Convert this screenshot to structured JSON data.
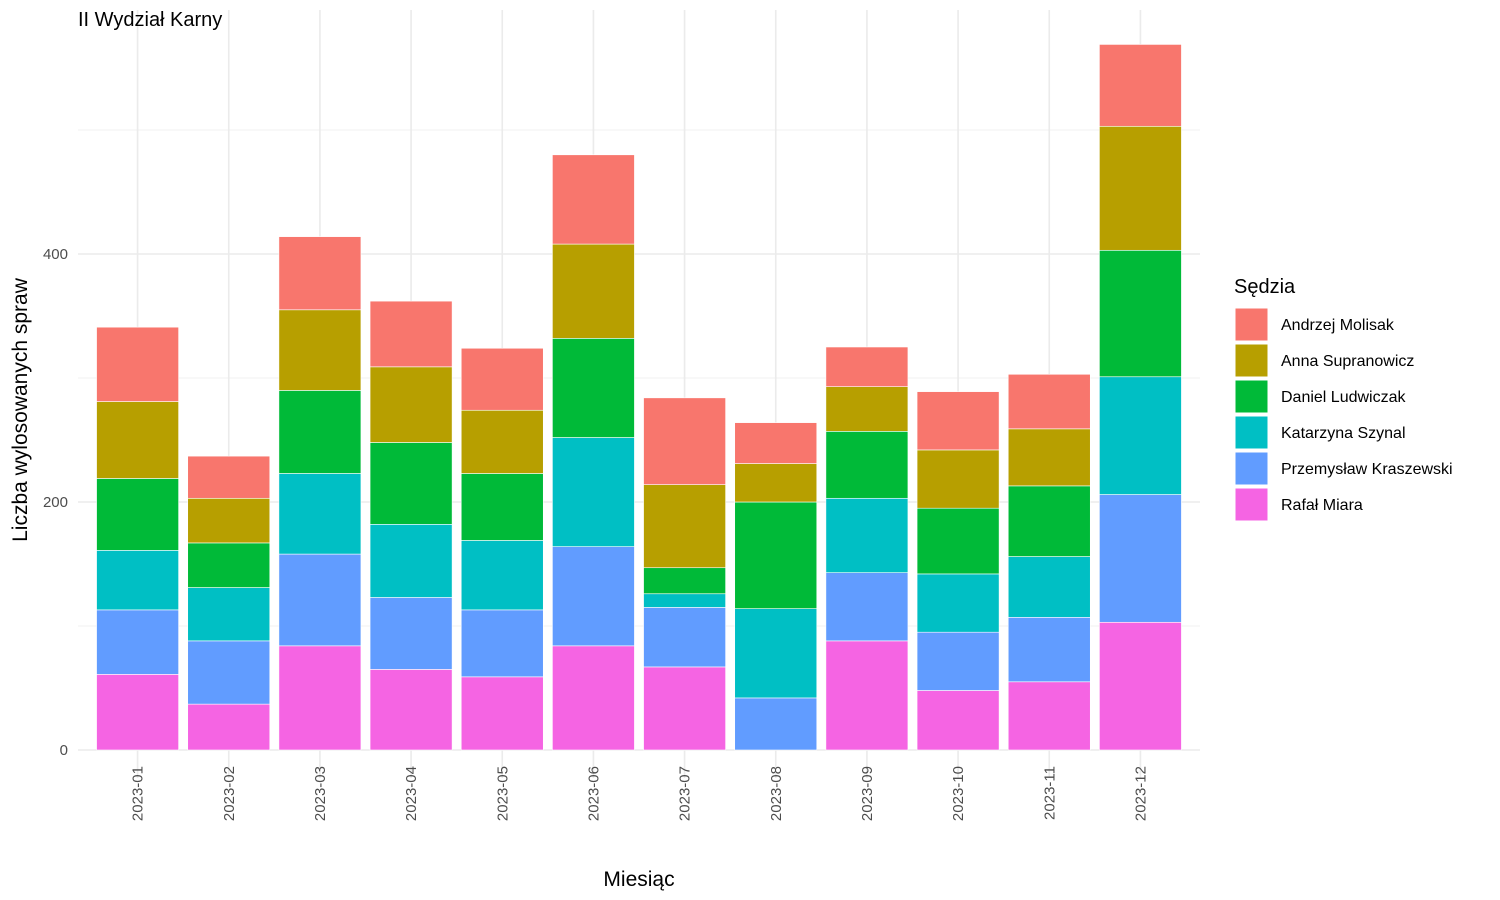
{
  "chart_data": {
    "type": "bar",
    "stacked": true,
    "title": "II Wydział Karny",
    "xlabel": "Miesiąc",
    "ylabel": "Liczba wylosowanych spraw",
    "ylim": [
      0,
      600
    ],
    "y_ticks": [
      0,
      200,
      400
    ],
    "grid": true,
    "legend_title": "Sędzia",
    "legend_position": "right",
    "categories": [
      "2023-01",
      "2023-02",
      "2023-03",
      "2023-04",
      "2023-05",
      "2023-06",
      "2023-07",
      "2023-08",
      "2023-09",
      "2023-10",
      "2023-11",
      "2023-12"
    ],
    "series": [
      {
        "name": "Rafał Miara",
        "color": "#F564E3",
        "values": [
          61,
          37,
          84,
          65,
          59,
          84,
          67,
          0,
          88,
          48,
          55,
          103
        ]
      },
      {
        "name": "Przemysław Kraszewski",
        "color": "#619CFF",
        "values": [
          52,
          51,
          74,
          58,
          54,
          80,
          48,
          42,
          55,
          47,
          52,
          103
        ]
      },
      {
        "name": "Katarzyna Szynal",
        "color": "#00BFC4",
        "values": [
          48,
          43,
          65,
          59,
          56,
          88,
          11,
          72,
          60,
          47,
          49,
          95
        ]
      },
      {
        "name": "Daniel Ludwiczak",
        "color": "#00BA38",
        "values": [
          58,
          36,
          67,
          66,
          54,
          80,
          21,
          86,
          54,
          53,
          57,
          102
        ]
      },
      {
        "name": "Anna Supranowicz",
        "color": "#B79F00",
        "values": [
          62,
          36,
          65,
          61,
          51,
          76,
          67,
          31,
          36,
          47,
          46,
          100
        ]
      },
      {
        "name": "Andrzej Molisak",
        "color": "#F8766D",
        "values": [
          60,
          34,
          59,
          53,
          50,
          72,
          70,
          33,
          32,
          47,
          44,
          66
        ]
      }
    ]
  }
}
